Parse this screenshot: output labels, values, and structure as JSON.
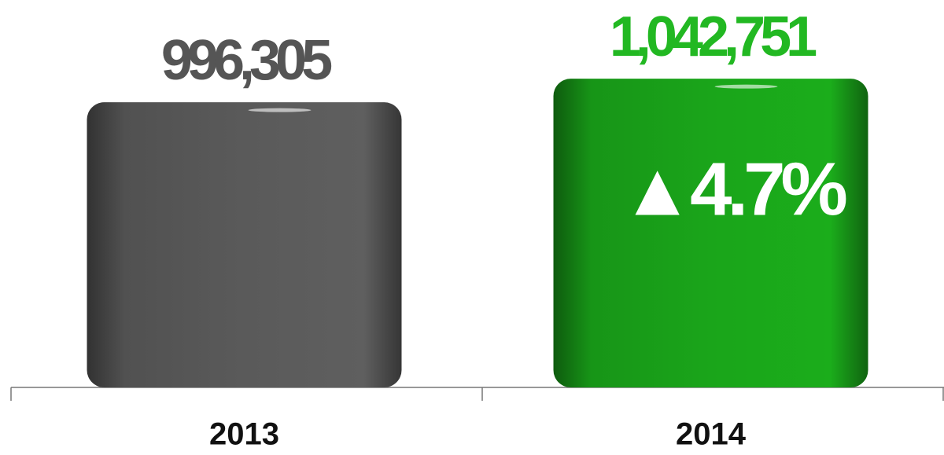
{
  "chart_data": {
    "type": "bar",
    "categories": [
      "2013",
      "2014"
    ],
    "values": [
      996305,
      1042751
    ],
    "value_labels": [
      "996,305",
      "1,042,751"
    ],
    "colors": [
      "#5a5a5a",
      "#1aa51a"
    ],
    "label_colors": [
      "#555555",
      "#22b822"
    ],
    "ylim": [
      434000,
      1198000
    ],
    "annotation": "▲4.7%"
  }
}
